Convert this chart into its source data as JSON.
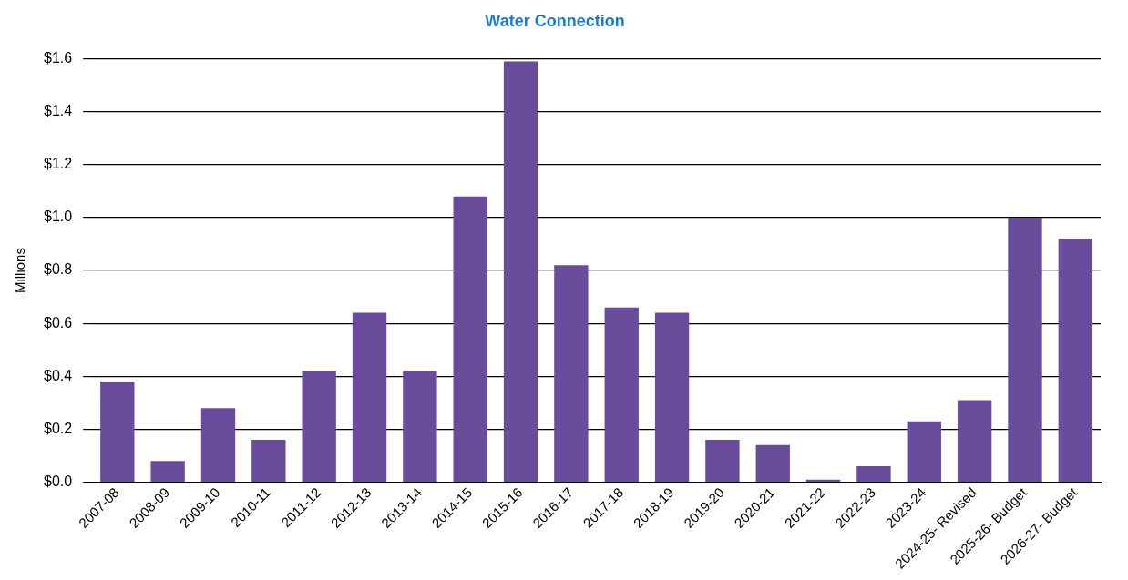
{
  "chart_data": {
    "type": "bar",
    "title": "Water Connection",
    "ylabel": "Millions",
    "categories": [
      "2007-08",
      "2008-09",
      "2009-10",
      "2010-11",
      "2011-12",
      "2012-13",
      "2013-14",
      "2014-15",
      "2015-16",
      "2016-17",
      "2017-18",
      "2018-19",
      "2019-20",
      "2020-21",
      "2021-22",
      "2022-23",
      "2023-24",
      "2024-25- Revised",
      "2025-26- Budget",
      "2026-27- Budget"
    ],
    "values": [
      0.38,
      0.08,
      0.28,
      0.16,
      0.42,
      0.64,
      0.42,
      1.08,
      1.59,
      0.82,
      0.66,
      0.64,
      0.16,
      0.14,
      0.01,
      0.06,
      0.23,
      0.31,
      1.0,
      0.92
    ],
    "color": "#6a4c9c",
    "ylim": [
      0,
      1.6
    ],
    "yticks": [
      {
        "value": 0,
        "label": "$0.0"
      },
      {
        "value": 0.2,
        "label": "$0.2"
      },
      {
        "value": 0.4,
        "label": "$0.4"
      },
      {
        "value": 0.6,
        "label": "$0.6"
      },
      {
        "value": 0.8,
        "label": "$0.8"
      },
      {
        "value": 1.0,
        "label": "$1.0"
      },
      {
        "value": 1.2,
        "label": "$1.2"
      },
      {
        "value": 1.4,
        "label": "$1.4"
      },
      {
        "value": 1.6,
        "label": "$1.6"
      }
    ],
    "grid": "y",
    "legend": false
  }
}
